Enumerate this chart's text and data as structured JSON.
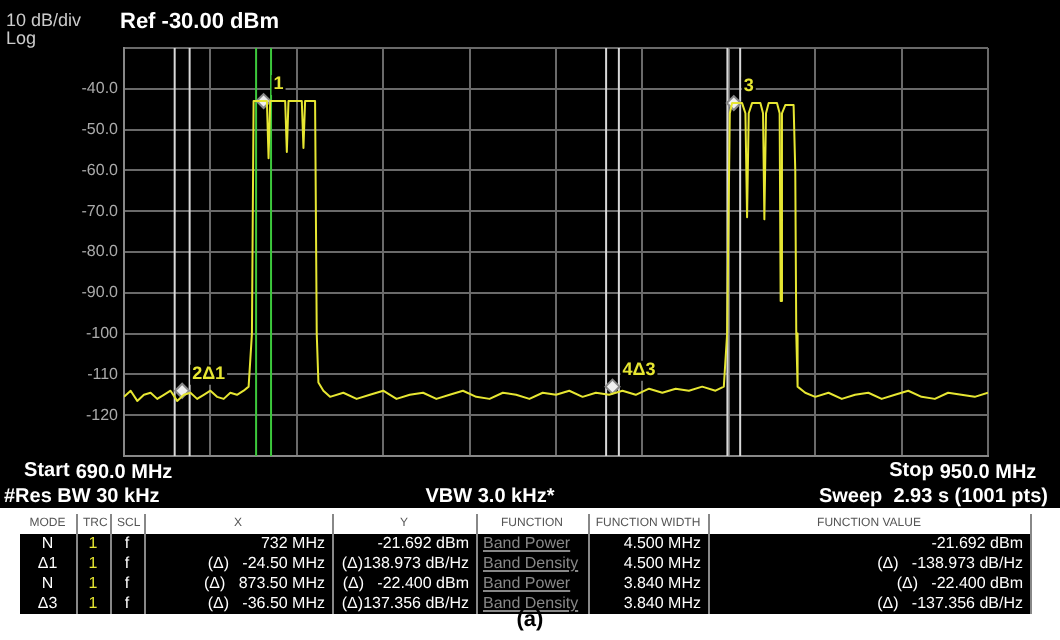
{
  "chart_data": {
    "type": "line",
    "title": "Ref -30.00 dBm",
    "x": [
      690,
      692,
      694,
      696,
      698,
      700,
      702,
      704,
      706,
      708,
      710,
      712,
      714,
      716,
      718,
      720,
      722,
      724,
      726,
      727.5,
      728.5,
      729,
      733,
      733.5,
      734,
      738.5,
      739,
      739.5,
      743.5,
      744,
      744.5,
      747.5,
      748,
      748.5,
      750,
      752,
      756,
      760,
      764,
      768,
      772,
      776,
      780,
      784,
      788,
      792,
      796,
      800,
      804,
      808,
      812,
      816,
      820,
      824,
      828,
      832,
      836,
      840,
      844,
      848,
      852,
      856,
      860,
      864,
      868,
      870.5,
      871.5,
      872.3,
      873,
      876,
      877,
      877.5,
      878,
      879,
      881.5,
      882.3,
      882.7,
      883.2,
      884,
      886.5,
      887.3,
      887.6,
      888,
      889,
      891.5,
      892,
      892.3,
      892.7,
      895,
      898,
      902,
      906,
      910,
      914,
      918,
      922,
      926,
      930,
      934,
      938,
      942,
      946,
      950
    ],
    "series": [
      {
        "color": "#e6e632",
        "values": [
          -115.5,
          -114,
          -116.5,
          -115,
          -114.5,
          -116,
          -115,
          -114,
          -116.5,
          -115,
          -114.5,
          -116,
          -115,
          -114,
          -115.5,
          -116,
          -114.5,
          -115,
          -114,
          -113,
          -100,
          -43,
          -43,
          -57,
          -43,
          -43,
          -55.5,
          -43,
          -43,
          -54.5,
          -43,
          -43,
          -100,
          -112,
          -114,
          -115.5,
          -114.5,
          -116,
          -115,
          -114,
          -116,
          -115,
          -114.5,
          -116,
          -115,
          -114,
          -115.5,
          -116,
          -114.5,
          -115,
          -116,
          -114.5,
          -115,
          -114,
          -115.5,
          -114.5,
          -115,
          -114,
          -115,
          -113.5,
          -114.5,
          -113.5,
          -114,
          -113,
          -114,
          -113,
          -100,
          -46,
          -43.5,
          -43.5,
          -46,
          -71.5,
          -46,
          -43.5,
          -43.5,
          -46,
          -72,
          -46,
          -43.5,
          -43.5,
          -46,
          -92,
          -46,
          -44,
          -44,
          -60,
          -100,
          -113,
          -114.5,
          -115.5,
          -114.5,
          -116,
          -115,
          -114.5,
          -116,
          -115,
          -114,
          -115.5,
          -116,
          -114.5,
          -115,
          -115.5,
          -114.5
        ]
      },
      {
        "type": "scatter",
        "color": "#f0f0f0",
        "marker": "diamond",
        "x": [
          732,
          707.5,
          873.5,
          837
        ],
        "values": [
          -43,
          -114,
          -43.5,
          -113
        ]
      }
    ],
    "xlim": [
      690,
      950
    ],
    "xticks": [
      {
        "value": 690,
        "label": "690.0 MHz"
      },
      {
        "value": 716,
        "label": null
      },
      {
        "value": 742,
        "label": null
      },
      {
        "value": 768,
        "label": null
      },
      {
        "value": 794,
        "label": null
      },
      {
        "value": 820,
        "label": null
      },
      {
        "value": 846,
        "label": null
      },
      {
        "value": 872,
        "label": null
      },
      {
        "value": 898,
        "label": null
      },
      {
        "value": 924,
        "label": null
      },
      {
        "value": 950,
        "label": "950.0 MHz"
      }
    ],
    "ylim": [
      -130,
      -30
    ],
    "yticks": [
      {
        "value": -30,
        "label": null
      },
      {
        "value": -40,
        "label": "-40.0"
      },
      {
        "value": -50,
        "label": "-50.0"
      },
      {
        "value": -60,
        "label": "-60.0"
      },
      {
        "value": -70,
        "label": "-70.0"
      },
      {
        "value": -80,
        "label": "-80.0"
      },
      {
        "value": -90,
        "label": "-90.0"
      },
      -100,
      -110,
      -120,
      {
        "value": -130,
        "label": null
      }
    ],
    "grid": true,
    "marker": "none",
    "line_style": "solid",
    "ref_lines": [
      {
        "axis": "x",
        "value": 705.25,
        "color": "#d8d8d8"
      },
      {
        "axis": "x",
        "value": 709.75,
        "color": "#d8d8d8"
      },
      {
        "axis": "x",
        "value": 729.75,
        "color": "#3cc83c"
      },
      {
        "axis": "x",
        "value": 734.25,
        "color": "#3cc83c"
      },
      {
        "axis": "x",
        "value": 835.08,
        "color": "#d8d8d8"
      },
      {
        "axis": "x",
        "value": 838.92,
        "color": "#d8d8d8"
      },
      {
        "axis": "x",
        "value": 871.58,
        "color": "#d8d8d8"
      },
      {
        "axis": "x",
        "value": 875.42,
        "color": "#d8d8d8"
      }
    ],
    "annotations": [
      "10 dB/div",
      "Log",
      "#Res BW 30 kHz",
      "VBW 3.0 kHz*",
      "Sweep  2.93 s (1001 pts)",
      "(a)",
      "Start",
      "Stop",
      {
        "text": "1",
        "x": 732,
        "y": -43
      },
      {
        "text": "2Δ1",
        "x": 707.5,
        "y": -114
      },
      {
        "text": "3",
        "x": 873.5,
        "y": -43.5
      },
      {
        "text": "4Δ3",
        "x": 837,
        "y": -113
      },
      "MODE",
      "TRC",
      "SCL",
      "X",
      "Y",
      "FUNCTION",
      "FUNCTION WIDTH",
      "FUNCTION VALUE",
      "N",
      "1",
      "f",
      "732 MHz",
      "-21.692 dBm",
      "Band Power",
      "4.500 MHz",
      "-21.692 dBm",
      "Δ1",
      "1",
      "f",
      "(Δ)   -24.50 MHz",
      "(Δ)138.973 dB/Hz",
      "Band Density",
      "4.500 MHz",
      "(Δ)   -138.973 dB/Hz",
      "N",
      "1",
      "f",
      "(Δ)   873.50 MHz",
      "(Δ)   -22.400 dBm",
      "Band Power",
      "3.840 MHz",
      "(Δ)   -22.400 dBm",
      "Δ3",
      "1",
      "f",
      "(Δ)   -36.50 MHz",
      "(Δ)137.356 dB/Hz",
      "Band Density",
      "3.840 MHz",
      "(Δ)   -137.356 dB/Hz"
    ]
  }
}
